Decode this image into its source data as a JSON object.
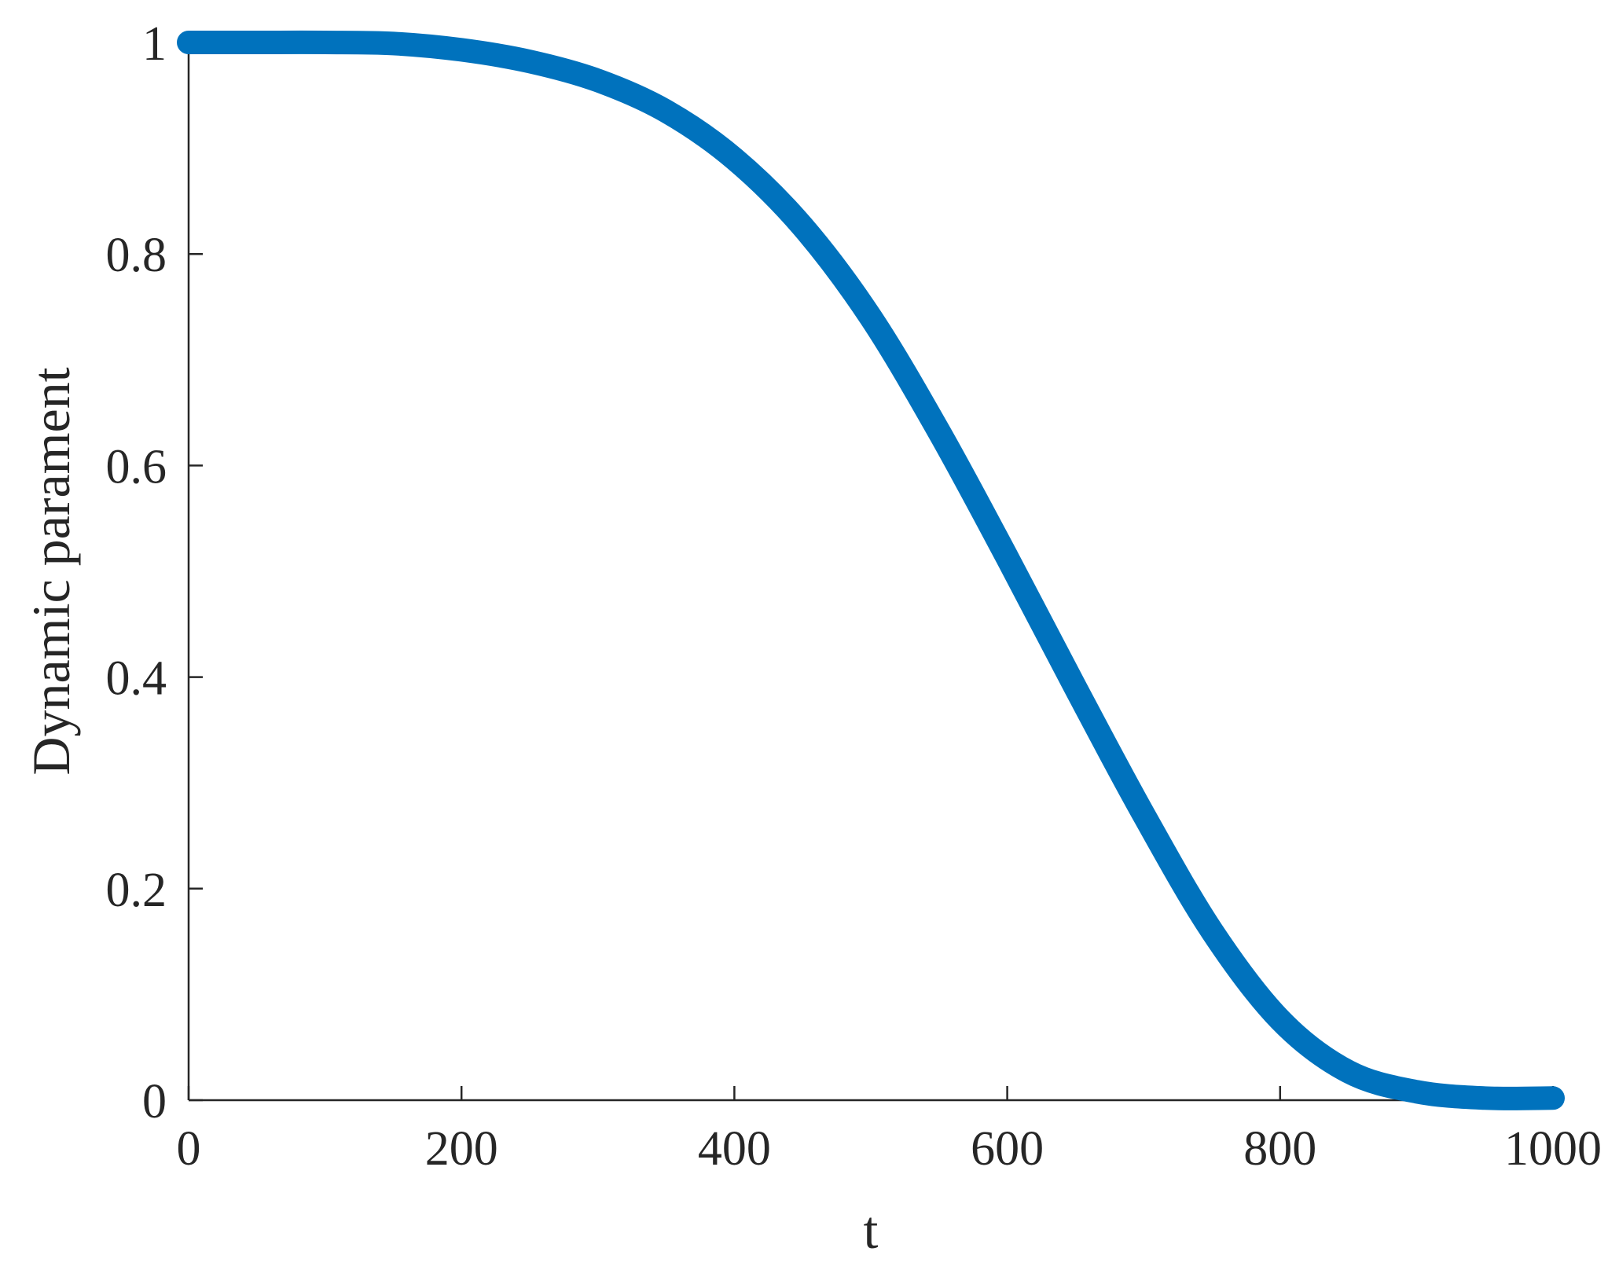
{
  "chart_data": {
    "type": "line",
    "title": "",
    "xlabel": "t",
    "ylabel": "Dynamic parament",
    "xlim": [
      0,
      1000
    ],
    "ylim": [
      0,
      1
    ],
    "xticks": [
      0,
      200,
      400,
      600,
      800,
      1000
    ],
    "xtick_labels": [
      "0",
      "200",
      "400",
      "600",
      "800",
      "1000"
    ],
    "yticks": [
      0,
      0.2,
      0.4,
      0.6,
      0.8,
      1
    ],
    "ytick_labels": [
      "0",
      "0.2",
      "0.4",
      "0.6",
      "0.8",
      "1"
    ],
    "grid": false,
    "box": false,
    "series": [
      {
        "color": "#0072BD",
        "x": [
          0,
          50,
          100,
          150,
          200,
          250,
          300,
          350,
          400,
          450,
          500,
          550,
          600,
          650,
          700,
          750,
          800,
          850,
          900,
          950,
          1000
        ],
        "y": [
          1.0,
          1.0,
          1.0,
          0.999,
          0.993,
          0.982,
          0.964,
          0.935,
          0.89,
          0.826,
          0.74,
          0.632,
          0.513,
          0.39,
          0.27,
          0.16,
          0.076,
          0.027,
          0.008,
          0.002,
          0.002
        ]
      }
    ]
  }
}
